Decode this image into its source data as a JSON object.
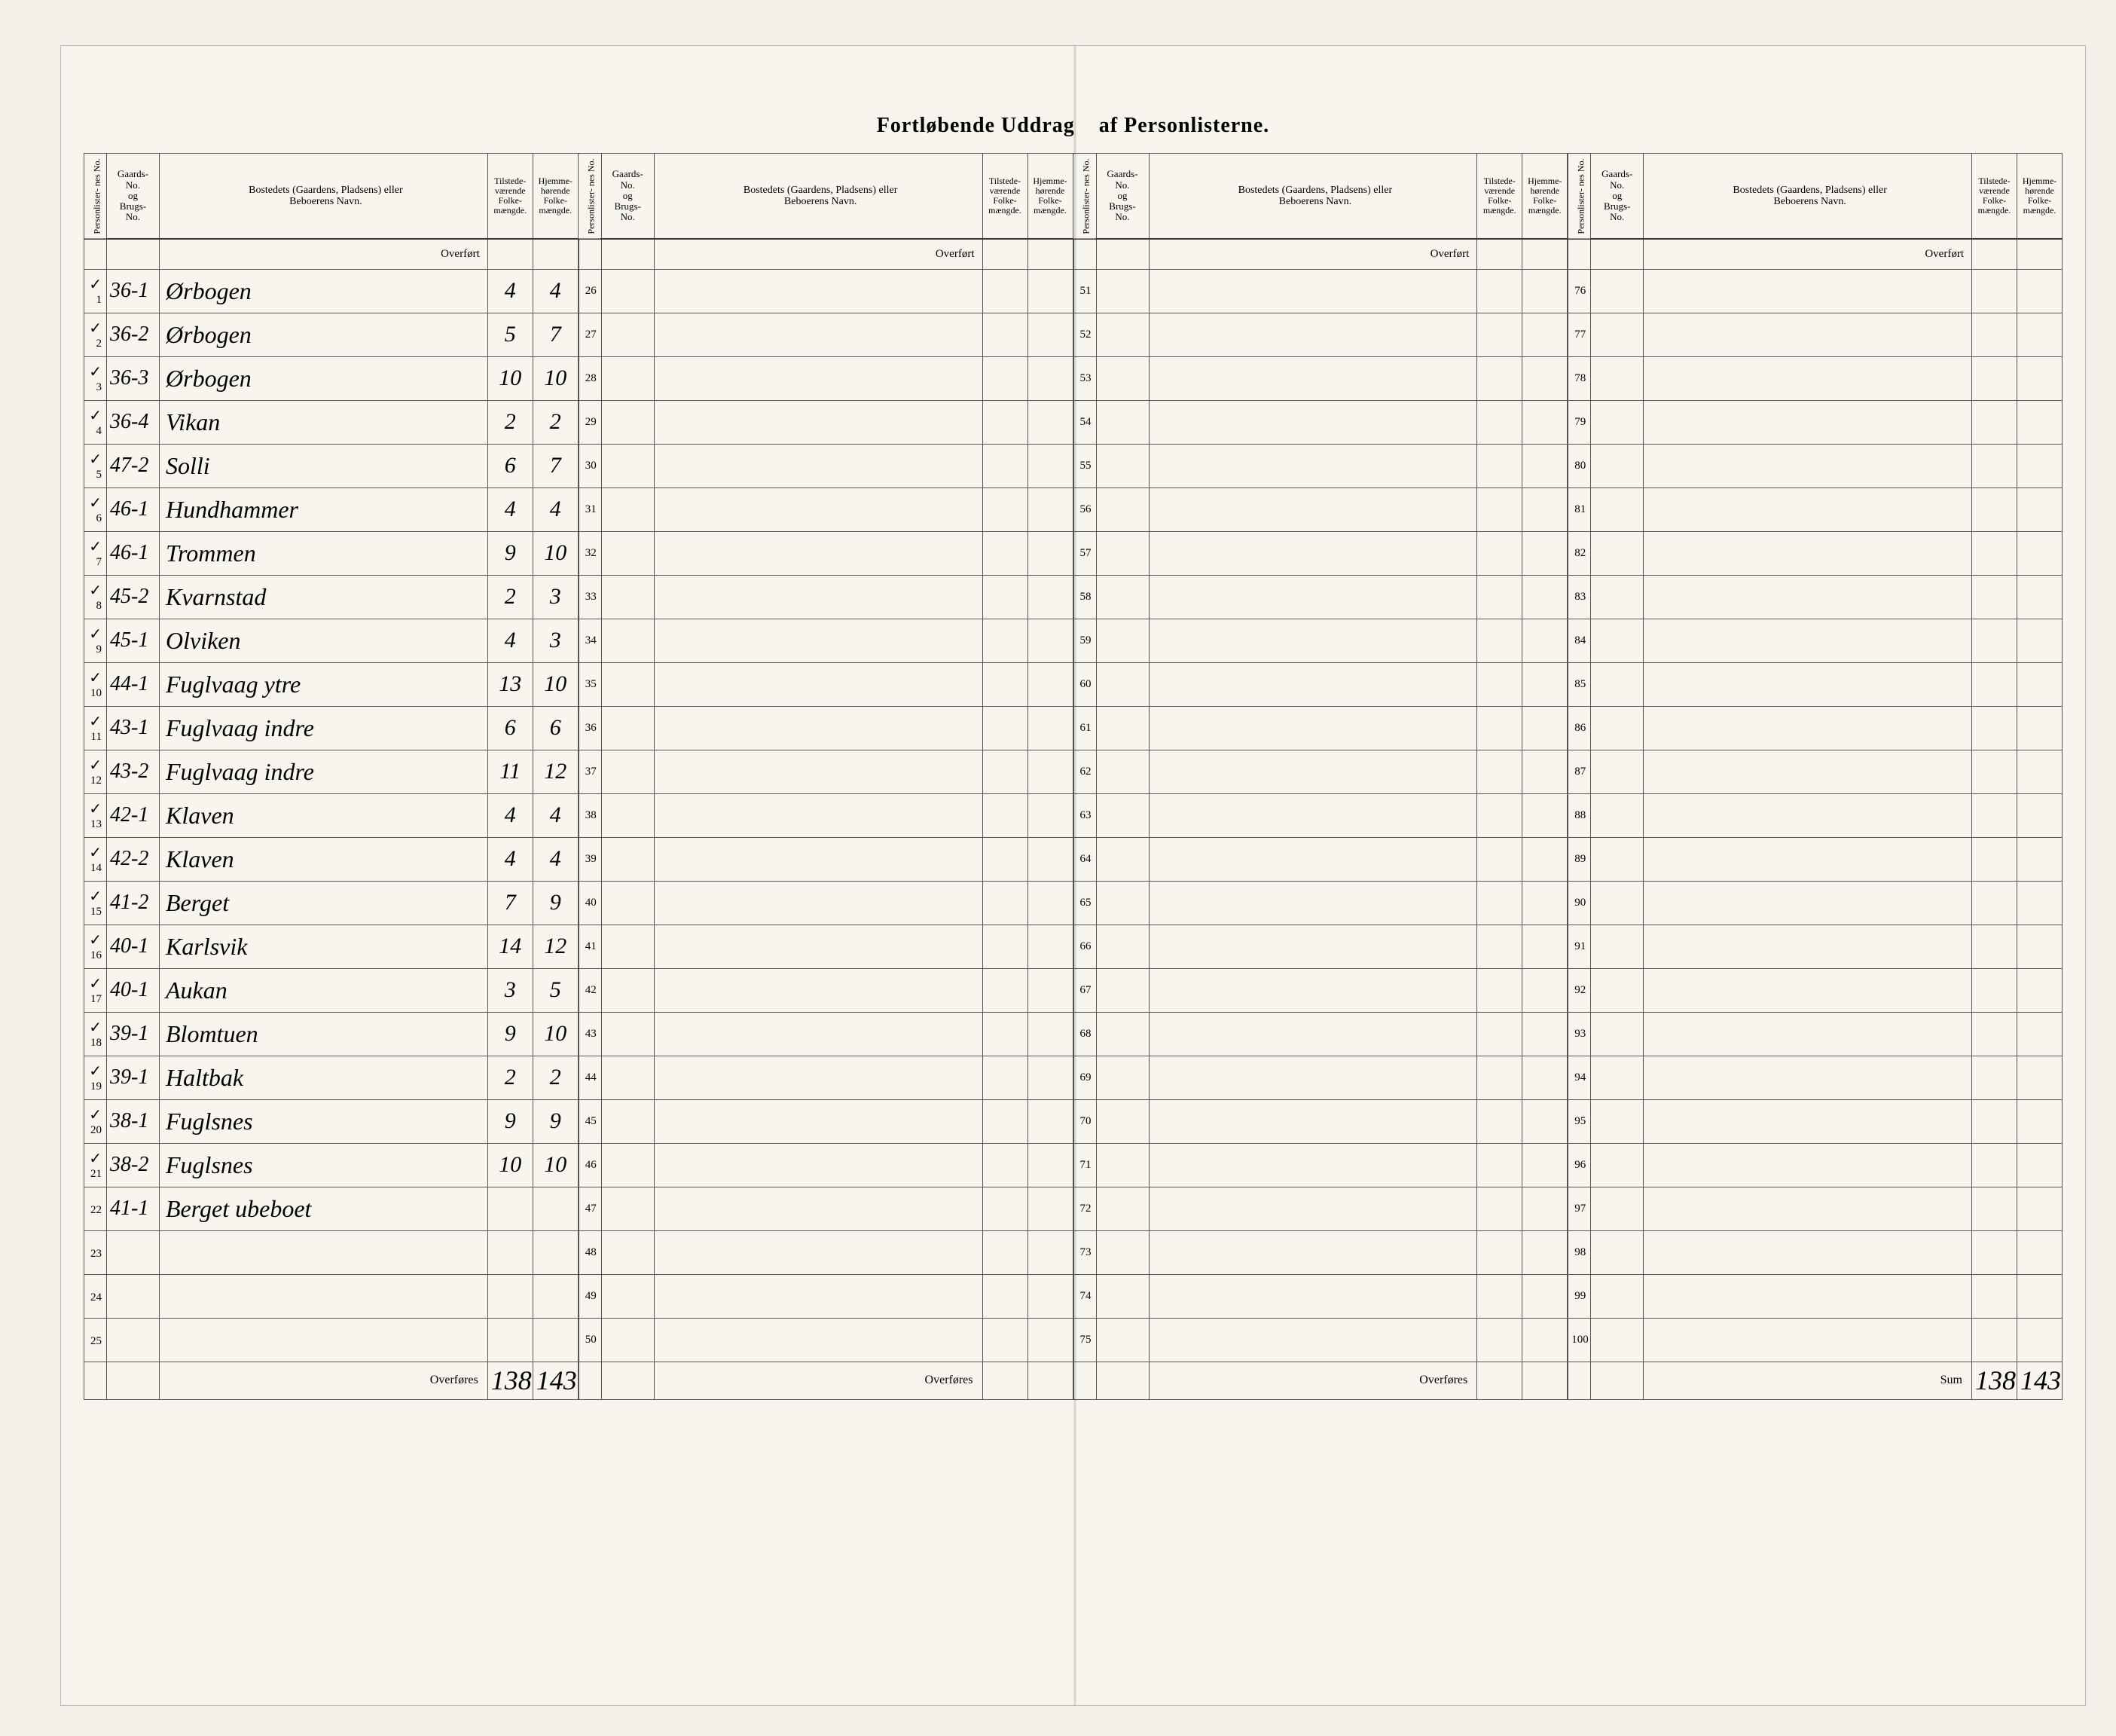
{
  "title_left": "Fortløbende Uddrag",
  "title_right": "af Personlisterne.",
  "headers": {
    "personliste_no": "Personlister-\nnes No.",
    "gaards_no": "Gaards-\nNo.\nog\nBrugs-\nNo.",
    "bosted": "Bostedets (Gaardens, Pladsens) eller\nBeboerens Navn.",
    "tilstede": "Tilstede-\nværende\nFolke-\nmængde.",
    "hjemme": "Hjemme-\nhørende\nFolke-\nmængde."
  },
  "overfort": "Overført",
  "overfores": "Overføres",
  "sum_label": "Sum",
  "rows": [
    {
      "n": "1",
      "g": "36-1",
      "name": "Ørbogen",
      "t": "4",
      "h": "4",
      "chk": "✓"
    },
    {
      "n": "2",
      "g": "36-2",
      "name": "Ørbogen",
      "t": "5",
      "h": "7",
      "chk": "✓"
    },
    {
      "n": "3",
      "g": "36-3",
      "name": "Ørbogen",
      "t": "10",
      "h": "10",
      "chk": "✓"
    },
    {
      "n": "4",
      "g": "36-4",
      "name": "Vikan",
      "t": "2",
      "h": "2",
      "chk": "✓"
    },
    {
      "n": "5",
      "g": "47-2",
      "name": "Solli",
      "t": "6",
      "h": "7",
      "chk": "✓"
    },
    {
      "n": "6",
      "g": "46-1",
      "name": "Hundhammer",
      "t": "4",
      "h": "4",
      "chk": "✓"
    },
    {
      "n": "7",
      "g": "46-1",
      "name": "Trommen",
      "t": "9",
      "h": "10",
      "chk": "✓"
    },
    {
      "n": "8",
      "g": "45-2",
      "name": "Kvarnstad",
      "t": "2",
      "h": "3",
      "chk": "✓"
    },
    {
      "n": "9",
      "g": "45-1",
      "name": "Olviken",
      "t": "4",
      "h": "3",
      "chk": "✓"
    },
    {
      "n": "10",
      "g": "44-1",
      "name": "Fuglvaag ytre",
      "t": "13",
      "h": "10",
      "chk": "✓"
    },
    {
      "n": "11",
      "g": "43-1",
      "name": "Fuglvaag indre",
      "t": "6",
      "h": "6",
      "chk": "✓"
    },
    {
      "n": "12",
      "g": "43-2",
      "name": "Fuglvaag indre",
      "t": "11",
      "h": "12",
      "chk": "✓"
    },
    {
      "n": "13",
      "g": "42-1",
      "name": "Klaven",
      "t": "4",
      "h": "4",
      "chk": "✓"
    },
    {
      "n": "14",
      "g": "42-2",
      "name": "Klaven",
      "t": "4",
      "h": "4",
      "chk": "✓"
    },
    {
      "n": "15",
      "g": "41-2",
      "name": "Berget",
      "t": "7",
      "h": "9",
      "chk": "✓"
    },
    {
      "n": "16",
      "g": "40-1",
      "name": "Karlsvik",
      "t": "14",
      "h": "12",
      "chk": "✓"
    },
    {
      "n": "17",
      "g": "40-1",
      "name": "Aukan",
      "t": "3",
      "h": "5",
      "chk": "✓"
    },
    {
      "n": "18",
      "g": "39-1",
      "name": "Blomtuen",
      "t": "9",
      "h": "10",
      "chk": "✓"
    },
    {
      "n": "19",
      "g": "39-1",
      "name": "Haltbak",
      "t": "2",
      "h": "2",
      "chk": "✓"
    },
    {
      "n": "20",
      "g": "38-1",
      "name": "Fuglsnes",
      "t": "9",
      "h": "9",
      "chk": "✓"
    },
    {
      "n": "21",
      "g": "38-2",
      "name": "Fuglsnes",
      "t": "10",
      "h": "10",
      "chk": "✓"
    },
    {
      "n": "22",
      "g": "41-1",
      "name": "Berget ubeboet",
      "t": "",
      "h": "",
      "chk": ""
    },
    {
      "n": "23",
      "g": "",
      "name": "",
      "t": "",
      "h": "",
      "chk": ""
    },
    {
      "n": "24",
      "g": "",
      "name": "",
      "t": "",
      "h": "",
      "chk": ""
    },
    {
      "n": "25",
      "g": "",
      "name": "",
      "t": "",
      "h": "",
      "chk": ""
    }
  ],
  "block2_start": 26,
  "block3_start": 51,
  "block4_start": 76,
  "totals": {
    "t": "138",
    "h": "143"
  },
  "sum": {
    "t": "138",
    "h": "143"
  },
  "colors": {
    "paper": "#f7f5ed",
    "ink": "#2a2a2a",
    "border": "#555555"
  }
}
